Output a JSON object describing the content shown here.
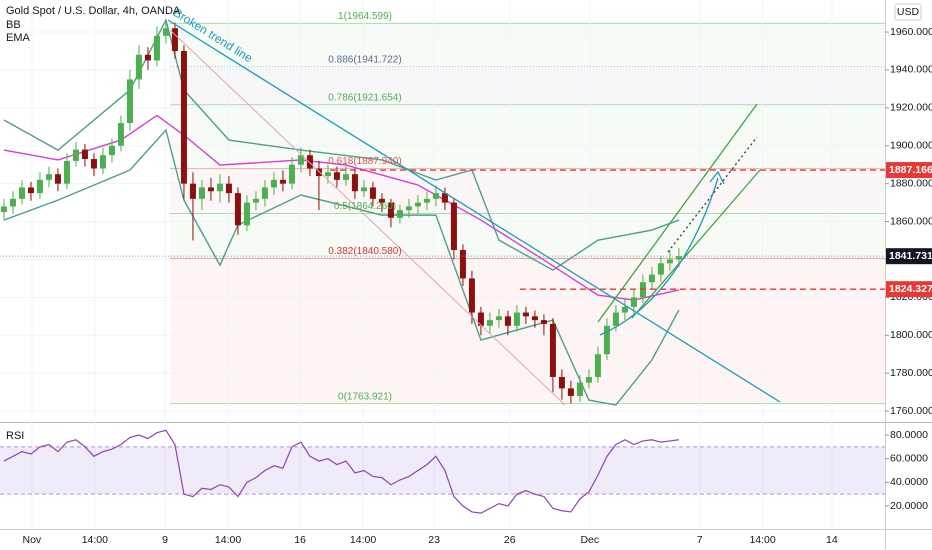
{
  "header": {
    "title": "Gold Spot / U.S. Dollar, 4h, OANDA",
    "indicators": [
      "BB",
      "EMA"
    ],
    "currency": "USD"
  },
  "chart_data": [
    {
      "type": "candlestick",
      "annotation": "Broken trend line",
      "up_color": "#4caf50",
      "down_color": "#8b1010",
      "grid": true,
      "xlim": [
        -0.44,
        97.9
      ],
      "ylim": [
        1755.3,
        1976.9
      ],
      "yticks": [
        {
          "value": 1760,
          "label": "1760.000"
        },
        {
          "value": 1780,
          "label": "1780.000"
        },
        {
          "value": 1800,
          "label": "1800.000"
        },
        {
          "value": 1820,
          "label": "1820.000"
        },
        {
          "value": 1840,
          "label": "1840.000"
        },
        {
          "value": 1860,
          "label": "1860.000"
        },
        {
          "value": 1880,
          "label": "1880.000"
        },
        {
          "value": 1900,
          "label": "1900.000"
        },
        {
          "value": 1920,
          "label": "1920.000"
        },
        {
          "value": 1940,
          "label": "1940.000"
        },
        {
          "value": 1960,
          "label": "1960.000"
        }
      ],
      "xticks": [
        {
          "value": 3.1,
          "label": "Nov"
        },
        {
          "value": 10.1,
          "label": "14:00"
        },
        {
          "value": 17.9,
          "label": "9"
        },
        {
          "value": 24.9,
          "label": "14:00"
        },
        {
          "value": 32.9,
          "label": "16"
        },
        {
          "value": 39.9,
          "label": "14:00"
        },
        {
          "value": 47.8,
          "label": "23"
        },
        {
          "value": 56.2,
          "label": "26"
        },
        {
          "value": 65.1,
          "label": "Dec"
        },
        {
          "value": 77.3,
          "label": "7"
        },
        {
          "value": 84.3,
          "label": "14:00"
        },
        {
          "value": 92,
          "label": "14"
        }
      ],
      "candles": [
        [
          1865,
          1872,
          1861,
          1868
        ],
        [
          1868,
          1876,
          1864,
          1872
        ],
        [
          1872,
          1882,
          1869,
          1878
        ],
        [
          1878,
          1881,
          1871,
          1875
        ],
        [
          1875,
          1886,
          1872,
          1882
        ],
        [
          1882,
          1889,
          1878,
          1885
        ],
        [
          1885,
          1888,
          1876,
          1880
        ],
        [
          1880,
          1896,
          1877,
          1892
        ],
        [
          1892,
          1902,
          1889,
          1898
        ],
        [
          1898,
          1901,
          1889,
          1893
        ],
        [
          1893,
          1896,
          1884,
          1888
        ],
        [
          1888,
          1899,
          1885,
          1895
        ],
        [
          1895,
          1904,
          1891,
          1900
        ],
        [
          1900,
          1916,
          1897,
          1912
        ],
        [
          1912,
          1940,
          1908,
          1935
        ],
        [
          1935,
          1953,
          1930,
          1948
        ],
        [
          1948,
          1952,
          1940,
          1945
        ],
        [
          1945,
          1963,
          1942,
          1958
        ],
        [
          1958,
          1966,
          1954,
          1962
        ],
        [
          1962,
          1965,
          1946,
          1950
        ],
        [
          1950,
          1953,
          1872,
          1880
        ],
        [
          1880,
          1886,
          1850,
          1872
        ],
        [
          1872,
          1882,
          1866,
          1878
        ],
        [
          1878,
          1883,
          1871,
          1876
        ],
        [
          1876,
          1885,
          1870,
          1880
        ],
        [
          1880,
          1884,
          1870,
          1875
        ],
        [
          1875,
          1878,
          1853,
          1858
        ],
        [
          1858,
          1874,
          1855,
          1870
        ],
        [
          1870,
          1876,
          1866,
          1872
        ],
        [
          1872,
          1882,
          1868,
          1878
        ],
        [
          1878,
          1886,
          1874,
          1882
        ],
        [
          1882,
          1887,
          1876,
          1880
        ],
        [
          1880,
          1894,
          1877,
          1890
        ],
        [
          1890,
          1899,
          1886,
          1895
        ],
        [
          1895,
          1898,
          1884,
          1888
        ],
        [
          1888,
          1892,
          1866,
          1884
        ],
        [
          1884,
          1890,
          1880,
          1886
        ],
        [
          1886,
          1889,
          1878,
          1882
        ],
        [
          1882,
          1889,
          1879,
          1885
        ],
        [
          1885,
          1888,
          1872,
          1876
        ],
        [
          1876,
          1882,
          1873,
          1878
        ],
        [
          1878,
          1881,
          1868,
          1872
        ],
        [
          1872,
          1875,
          1865,
          1870
        ],
        [
          1870,
          1872,
          1857,
          1862
        ],
        [
          1862,
          1869,
          1859,
          1866
        ],
        [
          1866,
          1872,
          1862,
          1868
        ],
        [
          1868,
          1874,
          1864,
          1870
        ],
        [
          1870,
          1876,
          1866,
          1872
        ],
        [
          1872,
          1879,
          1868,
          1875
        ],
        [
          1875,
          1878,
          1866,
          1870
        ],
        [
          1870,
          1872,
          1840,
          1845
        ],
        [
          1845,
          1848,
          1826,
          1830
        ],
        [
          1830,
          1834,
          1806,
          1812
        ],
        [
          1812,
          1815,
          1800,
          1805
        ],
        [
          1805,
          1812,
          1801,
          1808
        ],
        [
          1808,
          1814,
          1804,
          1810
        ],
        [
          1810,
          1813,
          1800,
          1805
        ],
        [
          1805,
          1816,
          1802,
          1812
        ],
        [
          1812,
          1815,
          1806,
          1810
        ],
        [
          1810,
          1813,
          1804,
          1808
        ],
        [
          1808,
          1811,
          1800,
          1806
        ],
        [
          1806,
          1809,
          1770,
          1778
        ],
        [
          1778,
          1782,
          1766,
          1772
        ],
        [
          1772,
          1776,
          1764,
          1768
        ],
        [
          1768,
          1779,
          1765,
          1775
        ],
        [
          1775,
          1782,
          1772,
          1778
        ],
        [
          1778,
          1794,
          1775,
          1790
        ],
        [
          1790,
          1809,
          1787,
          1805
        ],
        [
          1805,
          1816,
          1802,
          1812
        ],
        [
          1812,
          1819,
          1808,
          1815
        ],
        [
          1815,
          1824,
          1811,
          1820
        ],
        [
          1820,
          1832,
          1817,
          1828
        ],
        [
          1828,
          1836,
          1824,
          1832
        ],
        [
          1832,
          1842,
          1828,
          1838
        ],
        [
          1838,
          1845,
          1834,
          1840
        ],
        [
          1840,
          1846,
          1836,
          1841.731
        ]
      ],
      "overlays": [
        {
          "color": "#4f9e8c",
          "x": [
            0,
            6,
            14,
            18,
            20,
            25,
            33,
            42,
            48,
            52,
            55,
            61,
            66,
            72,
            75
          ],
          "values": [
            1913.6,
            1897.7,
            1929.4,
            1966.3,
            1929.4,
            1903,
            1897.7,
            1892.5,
            1881.9,
            1887.2,
            1850.2,
            1834.4,
            1850.2,
            1855.5,
            1860.8
          ]
        },
        {
          "color": "#4f9e8c",
          "x": [
            0,
            6,
            14,
            18,
            20,
            24,
            26,
            33,
            42,
            48,
            53,
            61,
            65,
            68,
            72,
            75
          ],
          "values": [
            1860.8,
            1871.3,
            1887.2,
            1908.3,
            1871.3,
            1837,
            1858.2,
            1874,
            1863.4,
            1863.4,
            1797.5,
            1808,
            1765.8,
            1763.2,
            1787,
            1813.3
          ]
        },
        {
          "color": "#d63bd6",
          "x": [
            0,
            6,
            13,
            17,
            20,
            24,
            33,
            38,
            46,
            53,
            60,
            66,
            70,
            75
          ],
          "values": [
            1897.7,
            1892.5,
            1903,
            1916,
            1905.6,
            1889.8,
            1892.5,
            1889.8,
            1879.3,
            1860.8,
            1839.7,
            1821.2,
            1818.6,
            1823.9
          ]
        }
      ],
      "fib_levels": [
        {
          "label": "1(1964.599)",
          "value": 1964.599,
          "color": "#4caf50"
        },
        {
          "label": "0.886(1941.722)",
          "value": 1941.722,
          "color": "#5b6a9a"
        },
        {
          "label": "0.786(1921.654)",
          "value": 1921.654,
          "color": "#4caf50"
        },
        {
          "label": "0.618(1887.940)",
          "value": 1887.94,
          "color": "#e05050"
        },
        {
          "label": "0.5(1864.260)",
          "value": 1864.26,
          "color": "#4caf50"
        },
        {
          "label": "0.382(1840.580)",
          "value": 1840.58,
          "color": "#e03030"
        },
        {
          "label": "0(1763.921)",
          "value": 1763.921,
          "color": "#4caf50"
        }
      ],
      "price_lines": [
        {
          "value": 1887.166,
          "color": "#e53935"
        },
        {
          "value": 1824.327,
          "color": "#e53935"
        }
      ],
      "last_price": {
        "value": 1841.731,
        "color": "#131722"
      }
    },
    {
      "type": "line",
      "ylim": [
        1.4,
        88.5
      ],
      "bands": [
        30,
        70
      ],
      "band_color": "#7e57c2",
      "grid": true,
      "yticks": [
        {
          "value": 20,
          "label": "20.0000"
        },
        {
          "value": 40,
          "label": "40.0000"
        },
        {
          "value": 60,
          "label": "60.0000"
        },
        {
          "value": 80,
          "label": "80.0000"
        }
      ],
      "series": [
        {
          "name": "RSI",
          "color": "#8e44ad",
          "values": [
            58,
            62,
            66,
            64,
            70,
            72,
            66,
            74,
            76,
            70,
            62,
            66,
            68,
            72,
            78,
            80,
            77,
            82,
            84,
            72,
            30,
            28,
            35,
            34,
            38,
            36,
            28,
            40,
            44,
            50,
            54,
            52,
            70,
            74,
            62,
            58,
            60,
            55,
            58,
            48,
            50,
            45,
            44,
            38,
            42,
            45,
            50,
            55,
            62,
            50,
            28,
            20,
            15,
            14,
            18,
            22,
            20,
            30,
            33,
            30,
            28,
            18,
            16,
            15,
            26,
            32,
            46,
            62,
            72,
            76,
            72,
            75,
            76,
            74,
            75,
            76
          ]
        }
      ]
    }
  ]
}
